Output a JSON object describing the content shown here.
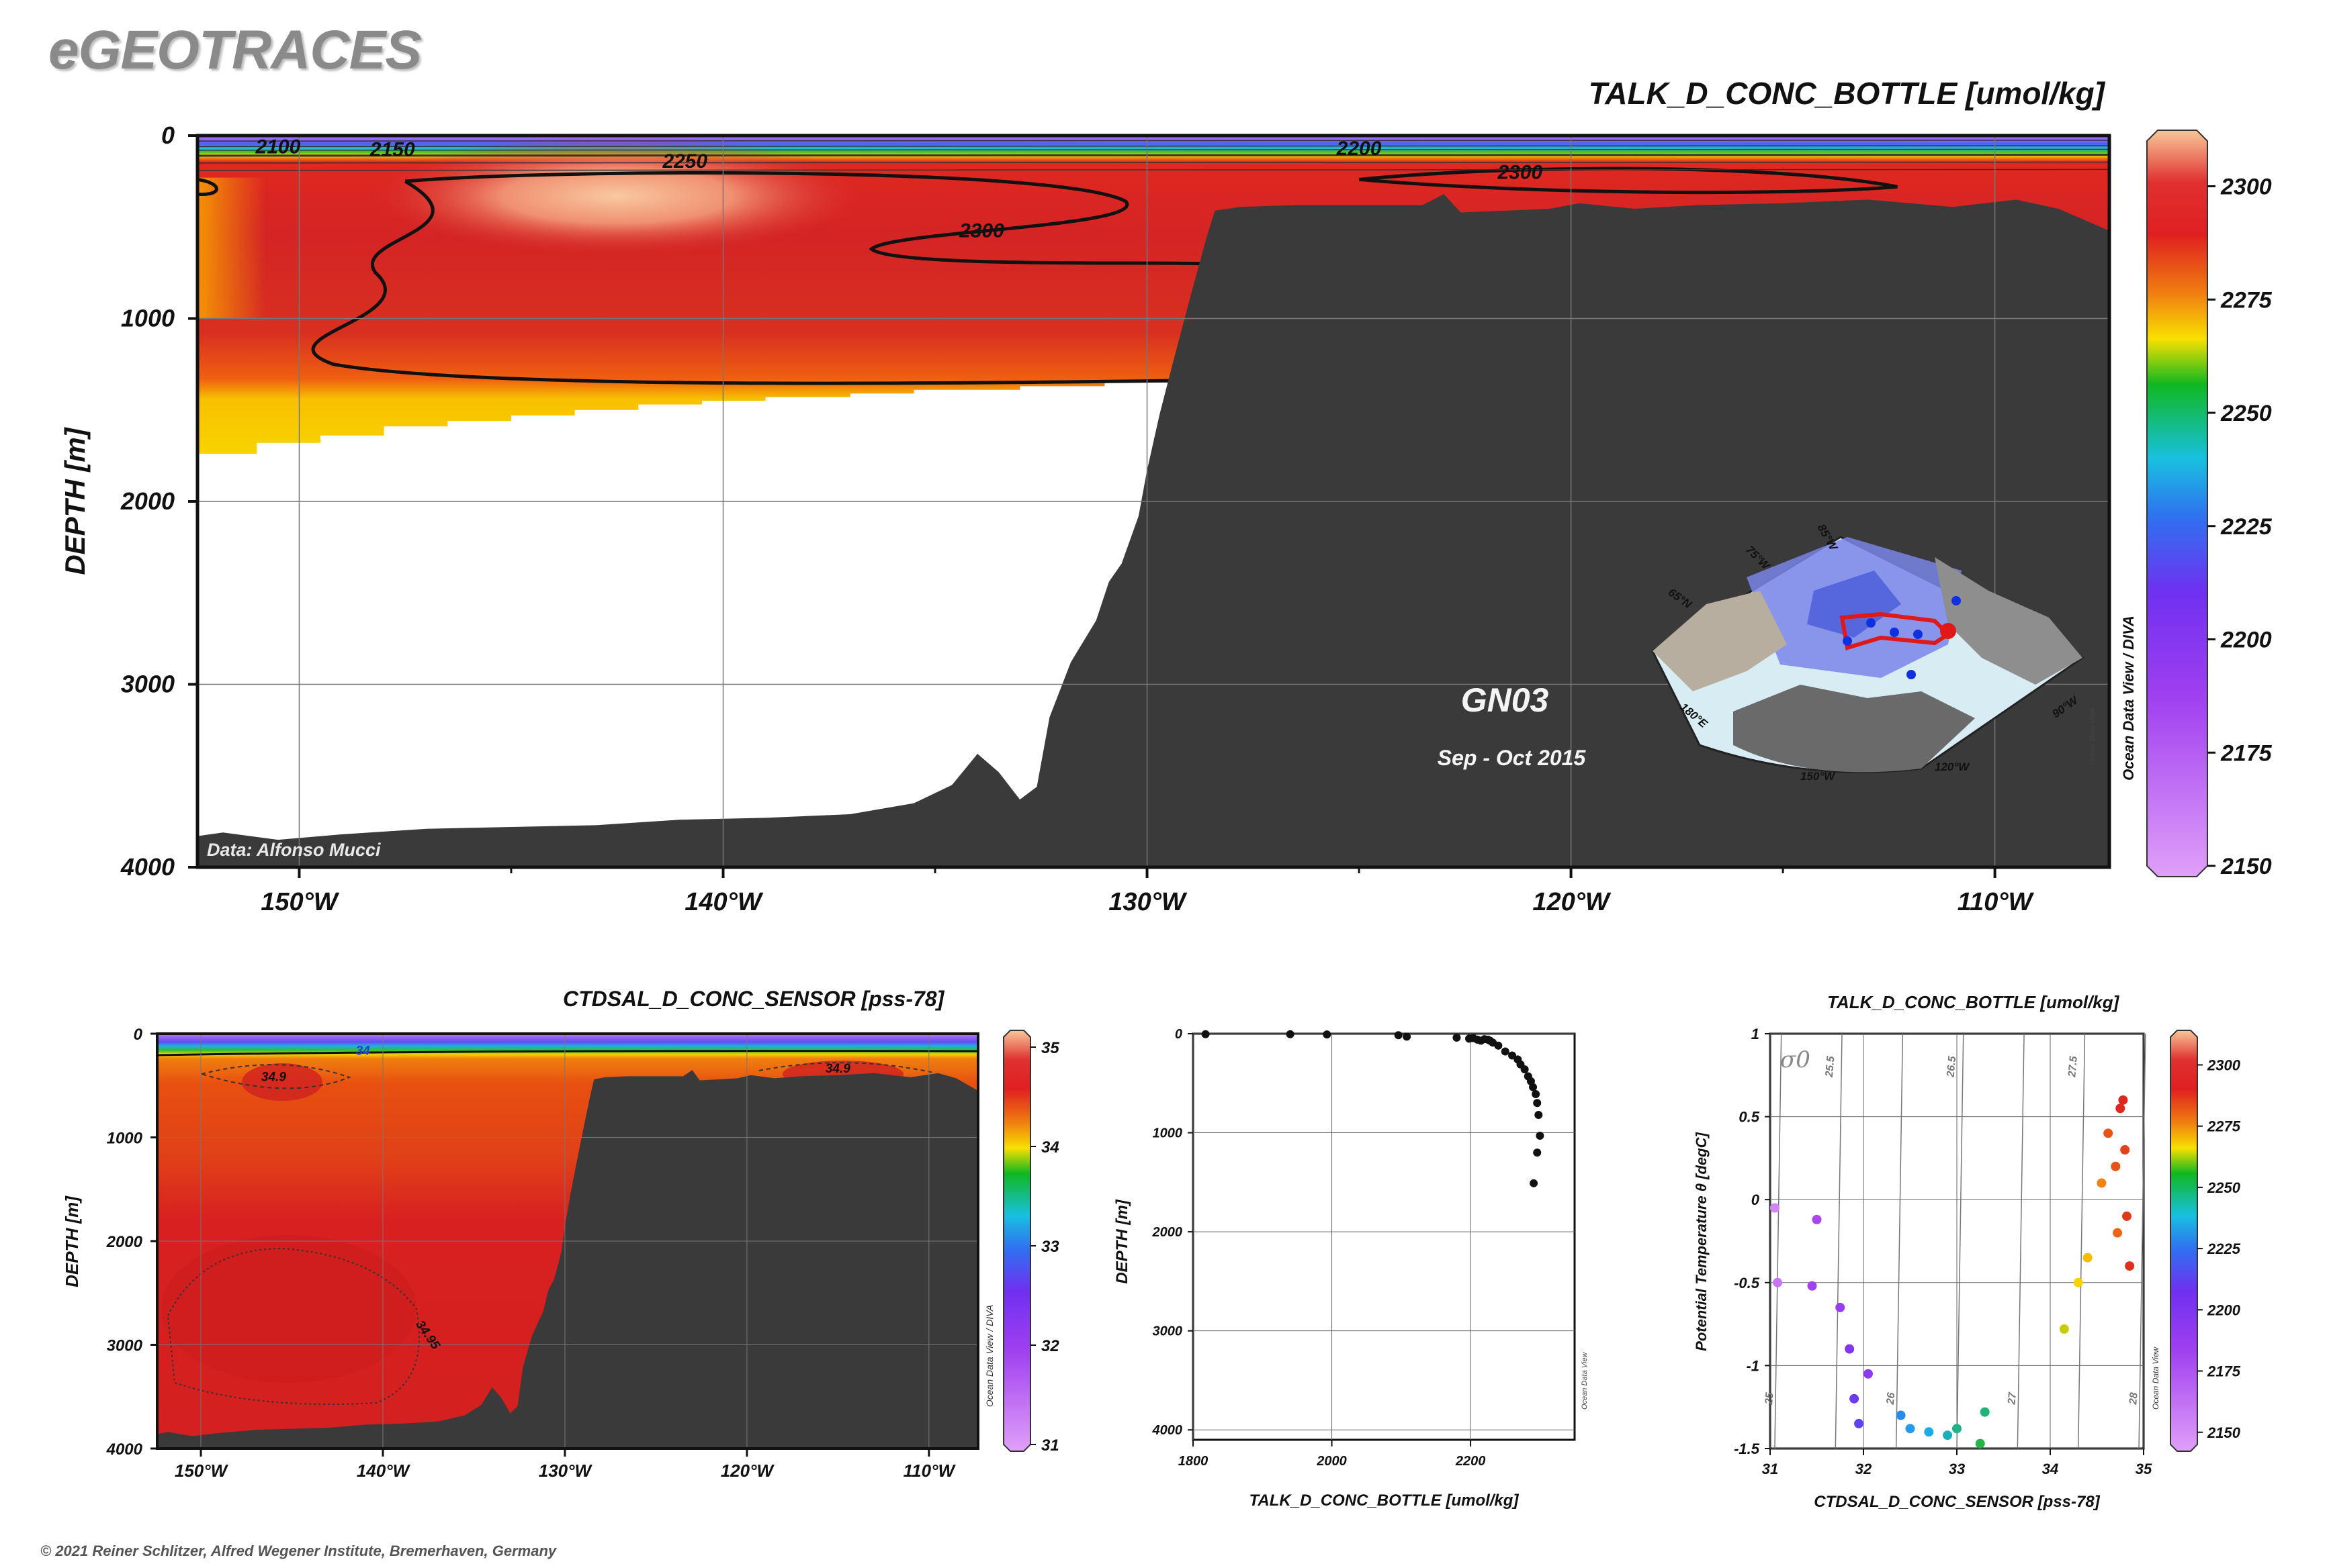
{
  "brand": "eGEOTRACES",
  "footer": "© 2021 Reiner Schlitzer, Alfred Wegener Institute, Bremerhaven, Germany",
  "colors": {
    "seafloor": "#3a3a3a",
    "salmon_high": "#f8c090",
    "red": "#d42020",
    "orange": "#f07010",
    "yellow": "#f8e000",
    "green": "#10b820",
    "cyan": "#18c0e0",
    "blue": "#3070f0",
    "purple": "#a040f0",
    "violet": "#d890f8"
  },
  "chart_data": [
    {
      "type": "heatmap",
      "title": "TALK_D_CONC_BOTTLE [umol/kg]",
      "ylabel": "DEPTH [m]",
      "xlabel": "",
      "xlim": [
        -152.4,
        -107.3
      ],
      "ylim": [
        4000,
        0
      ],
      "x_ticks": [
        "150°W",
        "140°W",
        "130°W",
        "120°W",
        "110°W"
      ],
      "x_tick_values": [
        -150,
        -140,
        -130,
        -120,
        -110
      ],
      "y_ticks": [
        "0",
        "1000",
        "2000",
        "3000",
        "4000"
      ],
      "y_tick_values": [
        0,
        1000,
        2000,
        3000,
        4000
      ],
      "contours": [
        {
          "label": "2100",
          "x": -150.5,
          "depth": 60
        },
        {
          "label": "2150",
          "x": -147.8,
          "depth": 75
        },
        {
          "label": "2250",
          "x": -140.9,
          "depth": 140
        },
        {
          "label": "2200",
          "x": -125.0,
          "depth": 70
        },
        {
          "label": "2300",
          "x": -133.9,
          "depth": 520
        },
        {
          "label": "2300",
          "x": -121.2,
          "depth": 200
        }
      ],
      "bathymetry": [
        [
          -152.4,
          3830
        ],
        [
          -151.8,
          3810
        ],
        [
          -150.5,
          3850
        ],
        [
          -149,
          3820
        ],
        [
          -147,
          3790
        ],
        [
          -145,
          3780
        ],
        [
          -143,
          3770
        ],
        [
          -141,
          3740
        ],
        [
          -139,
          3730
        ],
        [
          -137,
          3710
        ],
        [
          -135.5,
          3650
        ],
        [
          -134.6,
          3550
        ],
        [
          -134.0,
          3380
        ],
        [
          -133.5,
          3480
        ],
        [
          -133.0,
          3630
        ],
        [
          -132.6,
          3560
        ],
        [
          -132.3,
          3180
        ],
        [
          -131.8,
          2880
        ],
        [
          -131.2,
          2650
        ],
        [
          -130.9,
          2440
        ],
        [
          -130.6,
          2340
        ],
        [
          -130.2,
          2080
        ],
        [
          -130.0,
          1830
        ],
        [
          -129.7,
          1520
        ],
        [
          -129.4,
          1250
        ],
        [
          -129.0,
          900
        ],
        [
          -128.6,
          560
        ],
        [
          -128.4,
          410
        ],
        [
          -127.8,
          390
        ],
        [
          -126.5,
          380
        ],
        [
          -125,
          380
        ],
        [
          -123.5,
          380
        ],
        [
          -123.0,
          320
        ],
        [
          -122.6,
          420
        ],
        [
          -121.5,
          410
        ],
        [
          -120.5,
          400
        ],
        [
          -119.8,
          370
        ],
        [
          -118.5,
          400
        ],
        [
          -117,
          380
        ],
        [
          -115,
          370
        ],
        [
          -113,
          350
        ],
        [
          -111,
          390
        ],
        [
          -109.5,
          350
        ],
        [
          -108.5,
          400
        ],
        [
          -107.3,
          520
        ]
      ],
      "data_bottom": [
        [
          -152.4,
          1800
        ],
        [
          -151.0,
          1740
        ],
        [
          -149.5,
          1680
        ],
        [
          -148.0,
          1640
        ],
        [
          -146.5,
          1590
        ],
        [
          -145.0,
          1560
        ],
        [
          -143.5,
          1530
        ],
        [
          -142.0,
          1500
        ],
        [
          -140.5,
          1470
        ],
        [
          -139.0,
          1450
        ],
        [
          -137.0,
          1430
        ],
        [
          -135.5,
          1410
        ],
        [
          -133.0,
          1390
        ],
        [
          -131.0,
          1370
        ],
        [
          -130.0,
          1350
        ]
      ],
      "colorbar": {
        "min": 2150,
        "max": 2310,
        "ticks": [
          "2300",
          "2275",
          "2250",
          "2225",
          "2200",
          "2175",
          "2150"
        ],
        "tick_values": [
          2300,
          2275,
          2250,
          2225,
          2200,
          2175,
          2150
        ],
        "credit": "Ocean Data View / DIVA"
      },
      "inset_map": {
        "section": "GN03",
        "dates": "Sep - Oct 2015",
        "labels": [
          "85°W",
          "75°W",
          "65°N",
          "180°E",
          "150°W",
          "120°W",
          "90°W"
        ],
        "credit": "Ocean Data View"
      },
      "annotation": "Data: Alfonso Mucci"
    },
    {
      "type": "heatmap",
      "title": "CTDSAL_D_CONC_SENSOR [pss-78]",
      "ylabel": "DEPTH [m]",
      "xlim": [
        -152.4,
        -107.3
      ],
      "ylim": [
        4000,
        0
      ],
      "x_ticks": [
        "150°W",
        "140°W",
        "130°W",
        "120°W",
        "110°W"
      ],
      "x_tick_values": [
        -150,
        -140,
        -130,
        -120,
        -110
      ],
      "y_ticks": [
        "0",
        "1000",
        "2000",
        "3000",
        "4000"
      ],
      "y_tick_values": [
        0,
        1000,
        2000,
        3000,
        4000
      ],
      "contours": [
        {
          "label": "34",
          "x": -141.1,
          "depth": 160
        },
        {
          "label": "34.9",
          "x": -146.0,
          "depth": 410
        },
        {
          "label": "34.9",
          "x": -115.0,
          "depth": 330
        },
        {
          "label": "34.95",
          "x": -137.5,
          "depth": 2900
        }
      ],
      "colorbar": {
        "min": 31,
        "max": 35,
        "ticks": [
          "35",
          "34",
          "33",
          "32",
          "31"
        ],
        "tick_values": [
          35,
          34,
          33,
          32,
          31
        ],
        "credit": "Ocean Data View / DIVA"
      }
    },
    {
      "type": "scatter",
      "title": "",
      "xlabel": "TALK_D_CONC_BOTTLE [umol/kg]",
      "ylabel": "DEPTH [m]",
      "xlim": [
        1800,
        2350
      ],
      "ylim": [
        4100,
        0
      ],
      "x_ticks": [
        "1800",
        "2000",
        "2200"
      ],
      "x_tick_values": [
        1800,
        2000,
        2200
      ],
      "y_ticks": [
        "0",
        "1000",
        "2000",
        "3000",
        "4000"
      ],
      "y_tick_values": [
        0,
        1000,
        2000,
        3000,
        4000
      ],
      "points": [
        [
          1818,
          5
        ],
        [
          1940,
          5
        ],
        [
          1993,
          8
        ],
        [
          2096,
          15
        ],
        [
          2108,
          30
        ],
        [
          2180,
          40
        ],
        [
          2198,
          50
        ],
        [
          2204,
          45
        ],
        [
          2210,
          60
        ],
        [
          2215,
          70
        ],
        [
          2220,
          55
        ],
        [
          2225,
          60
        ],
        [
          2228,
          70
        ],
        [
          2232,
          90
        ],
        [
          2240,
          120
        ],
        [
          2250,
          180
        ],
        [
          2260,
          220
        ],
        [
          2268,
          260
        ],
        [
          2272,
          310
        ],
        [
          2278,
          360
        ],
        [
          2283,
          430
        ],
        [
          2287,
          480
        ],
        [
          2290,
          540
        ],
        [
          2294,
          610
        ],
        [
          2296,
          700
        ],
        [
          2298,
          820
        ],
        [
          2300,
          1030
        ],
        [
          2296,
          1200
        ],
        [
          2291,
          1510
        ]
      ],
      "credit": "Ocean Data View"
    },
    {
      "type": "scatter",
      "title": "TALK_D_CONC_BOTTLE [umol/kg]",
      "xlabel": "CTDSAL_D_CONC_SENSOR [pss-78]",
      "ylabel": "Potential Temperature θ [degC]",
      "xlim": [
        31,
        35
      ],
      "ylim": [
        -1.5,
        1
      ],
      "x_ticks": [
        "31",
        "32",
        "33",
        "34",
        "35"
      ],
      "x_tick_values": [
        31,
        32,
        33,
        34,
        35
      ],
      "y_ticks": [
        "1",
        "0.5",
        "0",
        "-0.5",
        "-1",
        "-1.5"
      ],
      "y_tick_values": [
        1,
        0.5,
        0,
        -0.5,
        -1,
        -1.5
      ],
      "sigma_label": "σ0",
      "isopycnals": [
        "25",
        "25.5",
        "26",
        "26.5",
        "27",
        "27.5",
        "28"
      ],
      "points": [
        [
          31.05,
          -0.05,
          2155
        ],
        [
          31.08,
          -0.5,
          2160
        ],
        [
          31.45,
          -0.52,
          2180
        ],
        [
          31.5,
          -0.12,
          2175
        ],
        [
          31.75,
          -0.65,
          2185
        ],
        [
          31.85,
          -0.9,
          2195
        ],
        [
          31.9,
          -1.2,
          2205
        ],
        [
          31.95,
          -1.35,
          2210
        ],
        [
          32.05,
          -1.05,
          2190
        ],
        [
          32.4,
          -1.3,
          2240
        ],
        [
          32.5,
          -1.38,
          2245
        ],
        [
          32.7,
          -1.4,
          2250
        ],
        [
          32.9,
          -1.42,
          2255
        ],
        [
          33.0,
          -1.38,
          2260
        ],
        [
          33.25,
          -1.47,
          2270
        ],
        [
          33.3,
          -1.28,
          2262
        ],
        [
          34.15,
          -0.78,
          2285
        ],
        [
          34.3,
          -0.5,
          2288
        ],
        [
          34.4,
          -0.35,
          2290
        ],
        [
          34.55,
          0.1,
          2295
        ],
        [
          34.62,
          0.4,
          2300
        ],
        [
          34.7,
          0.2,
          2300
        ],
        [
          34.75,
          0.55,
          2305
        ],
        [
          34.78,
          0.6,
          2306
        ],
        [
          34.82,
          -0.1,
          2303
        ],
        [
          34.85,
          -0.4,
          2304
        ],
        [
          34.8,
          0.3,
          2302
        ],
        [
          34.72,
          -0.2,
          2298
        ]
      ],
      "colorbar": {
        "min": 2145,
        "max": 2310,
        "ticks": [
          "2300",
          "2275",
          "2250",
          "2225",
          "2200",
          "2175",
          "2150"
        ],
        "tick_values": [
          2300,
          2275,
          2250,
          2225,
          2200,
          2175,
          2150
        ],
        "credit": "Ocean Data View"
      }
    }
  ]
}
